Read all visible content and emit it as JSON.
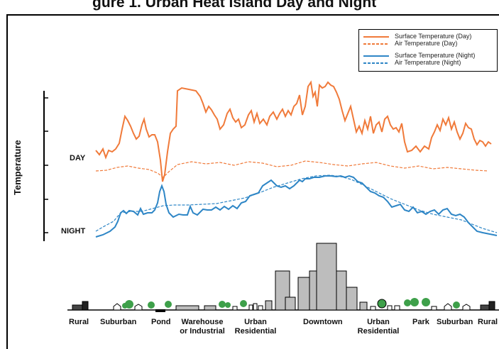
{
  "header": {
    "title": "gure 1. Urban Heat Island Day and Night"
  },
  "y_axis": {
    "label": "Temperature"
  },
  "row_labels": {
    "day": "DAY",
    "night": "NIGHT"
  },
  "legend": {
    "items": [
      {
        "label": "Surface Temperature (Day)",
        "color": "#f07a3a",
        "style": "solid"
      },
      {
        "label": "Air Temperature  (Day)",
        "color": "#f07a3a",
        "style": "dashed"
      },
      {
        "label": "Surface Temperature (Night)",
        "color": "#2e86c6",
        "style": "solid"
      },
      {
        "label": "Air Temperature (Night)",
        "color": "#2e86c6",
        "style": "dashed"
      }
    ]
  },
  "zones": [
    {
      "label": "Rural"
    },
    {
      "label": "Suburban"
    },
    {
      "label": "Pond"
    },
    {
      "label": "Warehouse or Industrial"
    },
    {
      "label": "Urban Residential"
    },
    {
      "label": "Downtown"
    },
    {
      "label": "Urban Residential"
    },
    {
      "label": "Park"
    },
    {
      "label": "Suburban"
    },
    {
      "label": "Rural"
    }
  ],
  "colors": {
    "day": "#f07a3a",
    "night": "#2e86c6",
    "building_fill": "#bdbdbd",
    "tree": "#3ea04a"
  },
  "icons": [
    "tree-icon",
    "house-icon",
    "building-icon"
  ]
}
